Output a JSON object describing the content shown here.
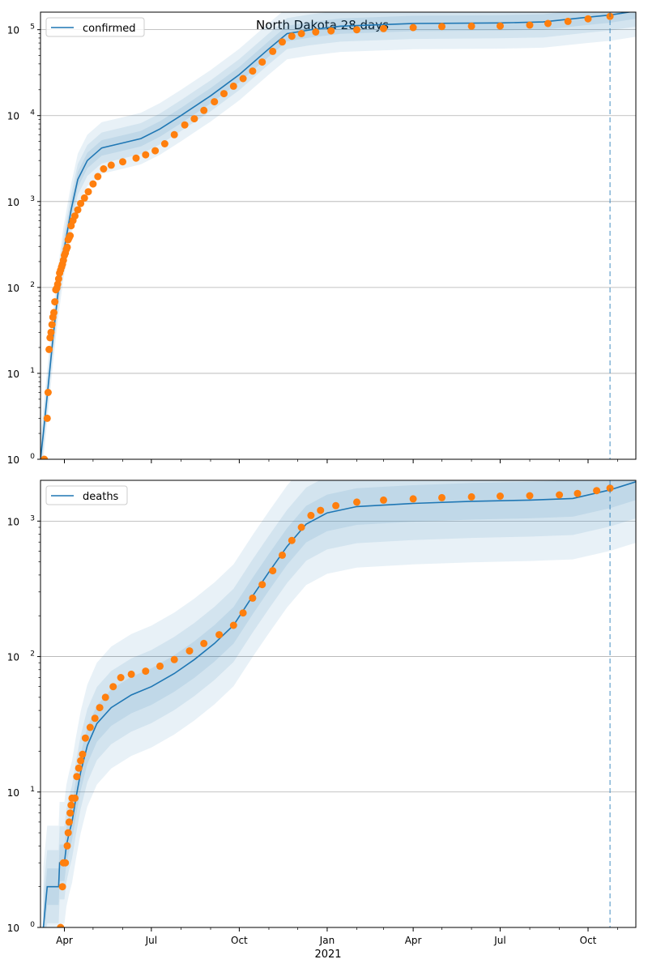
{
  "figure": {
    "title": "North Dakota 28 days"
  },
  "colors": {
    "model": "#1f77b4",
    "observed": "#ff7f0e",
    "band": "#1f77b4",
    "grid": "#b0b0b0",
    "forecast_start": "#1f77b4"
  },
  "x_ticks": {
    "major": [
      "Apr",
      "Jul",
      "Oct",
      "Jan",
      "Apr",
      "Jul",
      "Oct"
    ],
    "year_label": "2021"
  },
  "chart_data": [
    {
      "type": "line",
      "name": "confirmed-panel",
      "legend": "confirmed",
      "legend_position": "top-left",
      "yscale": "log",
      "ylim": [
        1,
        160000
      ],
      "xlim": [
        "2020-03-07",
        "2021-11-20"
      ],
      "grid": "y",
      "forecast_start": "2021-10-24",
      "y_ticks": [
        1,
        10,
        100,
        1000,
        10000,
        100000
      ],
      "y_tick_labels": [
        "10^0",
        "10^1",
        "10^2",
        "10^3",
        "10^4",
        "10^5"
      ],
      "model_series": {
        "name": "confirmed",
        "points": [
          [
            "2020-03-07",
            1
          ],
          [
            "2020-03-10",
            2
          ],
          [
            "2020-03-15",
            7
          ],
          [
            "2020-03-20",
            25
          ],
          [
            "2020-03-25",
            80
          ],
          [
            "2020-03-31",
            250
          ],
          [
            "2020-04-08",
            800
          ],
          [
            "2020-04-15",
            1800
          ],
          [
            "2020-04-25",
            3000
          ],
          [
            "2020-05-10",
            4200
          ],
          [
            "2020-06-01",
            4800
          ],
          [
            "2020-06-20",
            5400
          ],
          [
            "2020-07-10",
            7000
          ],
          [
            "2020-08-01",
            10000
          ],
          [
            "2020-09-01",
            17000
          ],
          [
            "2020-10-01",
            30000
          ],
          [
            "2020-11-01",
            60000
          ],
          [
            "2020-11-20",
            90000
          ],
          [
            "2020-12-15",
            100000
          ],
          [
            "2021-01-15",
            110000
          ],
          [
            "2021-04-01",
            118000
          ],
          [
            "2021-07-01",
            120000
          ],
          [
            "2021-08-15",
            123000
          ],
          [
            "2021-10-01",
            140000
          ],
          [
            "2021-10-24",
            148000
          ],
          [
            "2021-11-20",
            165000
          ]
        ]
      },
      "observed_series": {
        "name": "observed",
        "points": [
          [
            "2020-03-11",
            1
          ],
          [
            "2020-03-14",
            3
          ],
          [
            "2020-03-15",
            6
          ],
          [
            "2020-03-16",
            19
          ],
          [
            "2020-03-17",
            26
          ],
          [
            "2020-03-18",
            30
          ],
          [
            "2020-03-19",
            37
          ],
          [
            "2020-03-20",
            45
          ],
          [
            "2020-03-21",
            51
          ],
          [
            "2020-03-22",
            68
          ],
          [
            "2020-03-23",
            94
          ],
          [
            "2020-03-24",
            98
          ],
          [
            "2020-03-25",
            109
          ],
          [
            "2020-03-26",
            126
          ],
          [
            "2020-03-27",
            147
          ],
          [
            "2020-03-28",
            159
          ],
          [
            "2020-03-29",
            173
          ],
          [
            "2020-03-30",
            186
          ],
          [
            "2020-03-31",
            207
          ],
          [
            "2020-04-01",
            236
          ],
          [
            "2020-04-02",
            251
          ],
          [
            "2020-04-03",
            278
          ],
          [
            "2020-04-04",
            293
          ],
          [
            "2020-04-05",
            360
          ],
          [
            "2020-04-06",
            380
          ],
          [
            "2020-04-07",
            400
          ],
          [
            "2020-04-08",
            522
          ],
          [
            "2020-04-10",
            600
          ],
          [
            "2020-04-12",
            680
          ],
          [
            "2020-04-15",
            800
          ],
          [
            "2020-04-18",
            950
          ],
          [
            "2020-04-22",
            1100
          ],
          [
            "2020-04-26",
            1300
          ],
          [
            "2020-05-01",
            1600
          ],
          [
            "2020-05-06",
            1950
          ],
          [
            "2020-05-12",
            2400
          ],
          [
            "2020-05-20",
            2650
          ],
          [
            "2020-06-01",
            2900
          ],
          [
            "2020-06-15",
            3200
          ],
          [
            "2020-06-25",
            3500
          ],
          [
            "2020-07-05",
            3900
          ],
          [
            "2020-07-15",
            4700
          ],
          [
            "2020-07-25",
            6000
          ],
          [
            "2020-08-05",
            7800
          ],
          [
            "2020-08-15",
            9200
          ],
          [
            "2020-08-25",
            11500
          ],
          [
            "2020-09-05",
            14500
          ],
          [
            "2020-09-15",
            18000
          ],
          [
            "2020-09-25",
            22000
          ],
          [
            "2020-10-05",
            27000
          ],
          [
            "2020-10-15",
            33000
          ],
          [
            "2020-10-25",
            42000
          ],
          [
            "2020-11-05",
            56000
          ],
          [
            "2020-11-15",
            72000
          ],
          [
            "2020-11-25",
            84000
          ],
          [
            "2020-12-05",
            90000
          ],
          [
            "2020-12-20",
            94000
          ],
          [
            "2021-01-05",
            97000
          ],
          [
            "2021-02-01",
            100000
          ],
          [
            "2021-03-01",
            103000
          ],
          [
            "2021-04-01",
            106000
          ],
          [
            "2021-05-01",
            109000
          ],
          [
            "2021-06-01",
            110000
          ],
          [
            "2021-07-01",
            110500
          ],
          [
            "2021-08-01",
            113000
          ],
          [
            "2021-08-20",
            118000
          ],
          [
            "2021-09-10",
            125000
          ],
          [
            "2021-10-01",
            134000
          ],
          [
            "2021-10-24",
            143000
          ]
        ]
      }
    },
    {
      "type": "line",
      "name": "deaths-panel",
      "legend": "deaths",
      "legend_position": "top-left",
      "yscale": "log",
      "ylim": [
        1,
        2000
      ],
      "xlim": [
        "2020-03-07",
        "2021-11-20"
      ],
      "grid": "y",
      "forecast_start": "2021-10-24",
      "y_ticks": [
        1,
        10,
        100,
        1000
      ],
      "y_tick_labels": [
        "10^0",
        "10^1",
        "10^2",
        "10^3"
      ],
      "model_series": {
        "name": "deaths",
        "points": [
          [
            "2020-03-10",
            1
          ],
          [
            "2020-03-14",
            2
          ],
          [
            "2020-03-26",
            2
          ],
          [
            "2020-03-27",
            3
          ],
          [
            "2020-04-01",
            3
          ],
          [
            "2020-04-03",
            4
          ],
          [
            "2020-04-06",
            5
          ],
          [
            "2020-04-09",
            6
          ],
          [
            "2020-04-13",
            9
          ],
          [
            "2020-04-18",
            14
          ],
          [
            "2020-04-25",
            22
          ],
          [
            "2020-05-05",
            32
          ],
          [
            "2020-05-20",
            42
          ],
          [
            "2020-06-10",
            52
          ],
          [
            "2020-07-01",
            60
          ],
          [
            "2020-07-25",
            75
          ],
          [
            "2020-08-15",
            95
          ],
          [
            "2020-09-05",
            125
          ],
          [
            "2020-09-25",
            170
          ],
          [
            "2020-10-15",
            280
          ],
          [
            "2020-11-01",
            420
          ],
          [
            "2020-11-20",
            650
          ],
          [
            "2020-12-10",
            950
          ],
          [
            "2021-01-01",
            1150
          ],
          [
            "2021-02-01",
            1280
          ],
          [
            "2021-04-01",
            1350
          ],
          [
            "2021-06-01",
            1400
          ],
          [
            "2021-08-01",
            1430
          ],
          [
            "2021-09-15",
            1470
          ],
          [
            "2021-10-24",
            1700
          ],
          [
            "2021-11-20",
            1950
          ]
        ]
      },
      "observed_series": {
        "name": "observed",
        "points": [
          [
            "2020-03-28",
            1
          ],
          [
            "2020-03-30",
            2
          ],
          [
            "2020-03-31",
            3
          ],
          [
            "2020-04-02",
            3
          ],
          [
            "2020-04-04",
            4
          ],
          [
            "2020-04-05",
            5
          ],
          [
            "2020-04-06",
            6
          ],
          [
            "2020-04-07",
            7
          ],
          [
            "2020-04-08",
            8
          ],
          [
            "2020-04-09",
            9
          ],
          [
            "2020-04-12",
            9
          ],
          [
            "2020-04-14",
            13
          ],
          [
            "2020-04-16",
            15
          ],
          [
            "2020-04-18",
            17
          ],
          [
            "2020-04-20",
            19
          ],
          [
            "2020-04-23",
            25
          ],
          [
            "2020-04-28",
            30
          ],
          [
            "2020-05-03",
            35
          ],
          [
            "2020-05-08",
            42
          ],
          [
            "2020-05-14",
            50
          ],
          [
            "2020-05-22",
            60
          ],
          [
            "2020-05-30",
            70
          ],
          [
            "2020-06-10",
            74
          ],
          [
            "2020-06-25",
            78
          ],
          [
            "2020-07-10",
            85
          ],
          [
            "2020-07-25",
            95
          ],
          [
            "2020-08-10",
            110
          ],
          [
            "2020-08-25",
            125
          ],
          [
            "2020-09-10",
            145
          ],
          [
            "2020-09-25",
            170
          ],
          [
            "2020-10-05",
            210
          ],
          [
            "2020-10-15",
            270
          ],
          [
            "2020-10-25",
            340
          ],
          [
            "2020-11-05",
            430
          ],
          [
            "2020-11-15",
            560
          ],
          [
            "2020-11-25",
            720
          ],
          [
            "2020-12-05",
            900
          ],
          [
            "2020-12-15",
            1100
          ],
          [
            "2020-12-25",
            1200
          ],
          [
            "2021-01-10",
            1300
          ],
          [
            "2021-02-01",
            1380
          ],
          [
            "2021-03-01",
            1430
          ],
          [
            "2021-04-01",
            1460
          ],
          [
            "2021-05-01",
            1490
          ],
          [
            "2021-06-01",
            1510
          ],
          [
            "2021-07-01",
            1530
          ],
          [
            "2021-08-01",
            1540
          ],
          [
            "2021-09-01",
            1560
          ],
          [
            "2021-09-20",
            1600
          ],
          [
            "2021-10-10",
            1680
          ],
          [
            "2021-10-24",
            1750
          ]
        ]
      }
    }
  ]
}
